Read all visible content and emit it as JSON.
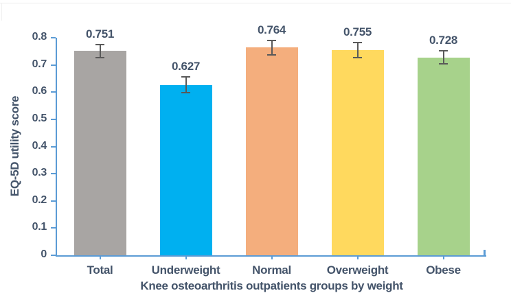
{
  "chart_data": {
    "type": "bar",
    "title": "",
    "categories": [
      "Total",
      "Underweight",
      "Normal",
      "Overweight",
      "Obese"
    ],
    "values": [
      0.751,
      0.627,
      0.764,
      0.755,
      0.728
    ],
    "value_labels": [
      "0.751",
      "0.627",
      "0.764",
      "0.755",
      "0.728"
    ],
    "errors": [
      0.025,
      0.028,
      0.026,
      0.027,
      0.025
    ],
    "bar_colors": [
      "#a8a5a3",
      "#00b0f0",
      "#f4ae7d",
      "#ffd95e",
      "#a7d28b"
    ],
    "xlabel": "Knee osteoarthritis outpatients groups by weight",
    "ylabel": "EQ-5D utility score",
    "ylim": [
      0,
      0.8
    ],
    "ytick_step": 0.1,
    "ytick_labels": [
      "0",
      "0.1",
      "0.2",
      "0.3",
      "0.4",
      "0.5",
      "0.6",
      "0.7",
      "0.8"
    ],
    "grid": false,
    "legend": "none",
    "error_bars": true,
    "axis_color": "#5b9bd5",
    "text_color": "#44546a",
    "error_bar_color": "#595959"
  }
}
